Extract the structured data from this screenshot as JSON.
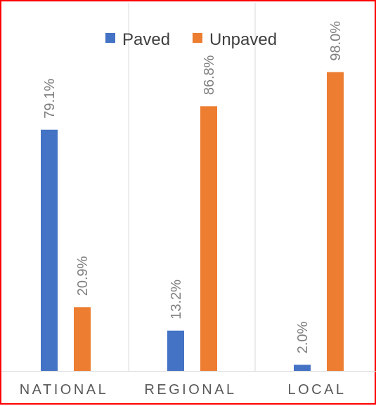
{
  "chart_data": {
    "type": "bar",
    "categories": [
      "NATIONAL",
      "REGIONAL",
      "LOCAL"
    ],
    "series": [
      {
        "name": "Paved",
        "values": [
          79.1,
          13.2,
          2.0
        ],
        "labels": [
          "79.1%",
          "13.2%",
          "2.0%"
        ],
        "color": "#4472c4"
      },
      {
        "name": "Unpaved",
        "values": [
          20.9,
          86.8,
          98.0
        ],
        "labels": [
          "20.9%",
          "86.8%",
          "98.0%"
        ],
        "color": "#ed7d31"
      }
    ],
    "ylim": [
      0,
      100
    ],
    "legend_position": "top",
    "grid": "vertical category separators",
    "title": "",
    "xlabel": "",
    "ylabel": ""
  }
}
